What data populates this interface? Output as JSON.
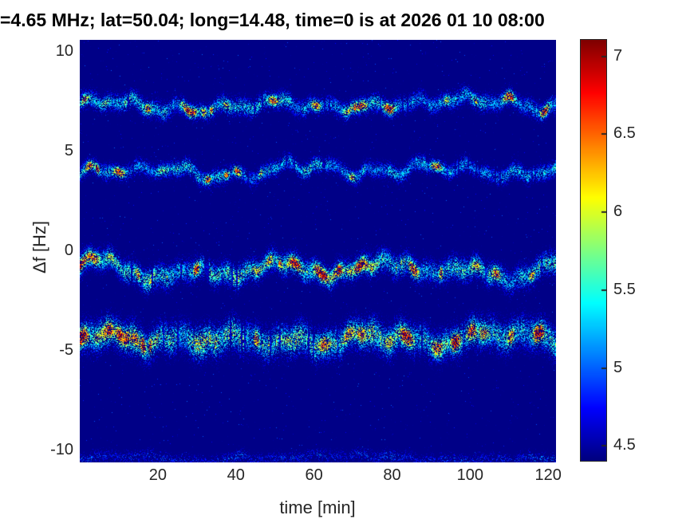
{
  "chart_data": {
    "type": "heatmap",
    "subtype": "doppler-spectrogram",
    "title": "=4.65 MHz;  lat=50.04; long=14.48, time=0 is at 2026 01 10 08:00",
    "xlabel": "time [min]",
    "ylabel": "Δf [Hz]",
    "xlim": [
      0,
      122
    ],
    "ylim": [
      -10.65,
      10.55
    ],
    "x_ticks": [
      20,
      40,
      60,
      80,
      100,
      120
    ],
    "y_ticks": [
      10,
      5,
      0,
      -5,
      -10
    ],
    "grid": false,
    "background_color": "#000085",
    "tick_color": "#262626",
    "title_color": "#000000",
    "colorbar": {
      "position": "right",
      "colormap": "jet",
      "range": [
        4.4,
        7.1
      ],
      "ticks": [
        7,
        6.5,
        6,
        5.5,
        5,
        4.5
      ]
    },
    "background_value": 4.42,
    "bands": [
      {
        "name": "trace-plus-7Hz",
        "center_hz": 7.2,
        "wiggle_hz": 0.33,
        "sigma_hz": 0.3,
        "typ_value": 6.1,
        "peak_value": 6.9,
        "density": 0.55,
        "hot_events": 22,
        "left_bias": 1.6,
        "right_fade": 0.9,
        "seed": 101
      },
      {
        "name": "trace-plus-4Hz",
        "center_hz": 4.05,
        "wiggle_hz": 0.38,
        "sigma_hz": 0.27,
        "typ_value": 6.0,
        "peak_value": 6.9,
        "density": 0.5,
        "hot_events": 16,
        "left_bias": 1.8,
        "right_fade": 0.8,
        "faint_line_value": 5.05,
        "seed": 202
      },
      {
        "name": "trace-minus-1Hz",
        "center_hz": -0.9,
        "wiggle_hz": 0.5,
        "sigma_hz": 0.4,
        "typ_value": 6.4,
        "peak_value": 7.05,
        "density": 0.75,
        "hot_events": 34,
        "left_bias": 1.5,
        "right_fade": 0.9,
        "seed": 303
      },
      {
        "name": "trace-minus-4.5Hz",
        "center_hz": -4.35,
        "wiggle_hz": 0.42,
        "sigma_hz": 0.55,
        "typ_value": 6.6,
        "peak_value": 7.1,
        "density": 0.95,
        "hot_events": 48,
        "left_bias": 1.7,
        "right_fade": 0.8,
        "seed": 404
      },
      {
        "name": "trace-minus-10Hz",
        "center_hz": -10.4,
        "wiggle_hz": 0.12,
        "sigma_hz": 0.22,
        "typ_value": 5.3,
        "peak_value": 5.6,
        "density": 0.18,
        "hot_events": 0,
        "left_bias": 1.0,
        "right_fade": 1.0,
        "seed": 505
      }
    ]
  }
}
